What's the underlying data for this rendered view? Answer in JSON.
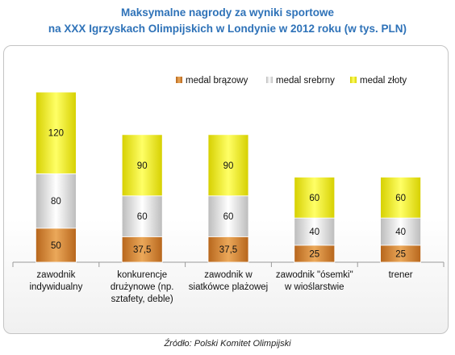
{
  "title_line1": "Maksymalne nagrody za wyniki sportowe",
  "title_line2": "na  XXX Igrzyskach Olimpijskich w Londynie w 2012 roku (w tys. PLN)",
  "source": "Źródło: Polski Komitet Olimpijski",
  "chart_data": {
    "type": "bar",
    "stacked": true,
    "title": "Maksymalne nagrody za wyniki sportowe na  XXX Igrzyskach Olimpijskich w Londynie w 2012 roku (w tys. PLN)",
    "categories": [
      [
        "zawodnik",
        "indywidualny"
      ],
      [
        "konkurencje",
        "drużynowe (np.",
        "sztafety, deble)"
      ],
      [
        "zawodnik w",
        "siatkówce plażowej"
      ],
      [
        "zawodnik \"ósemki\"",
        "w wioślarstwie"
      ],
      [
        "trener"
      ]
    ],
    "series": [
      {
        "name": "medal brązowy",
        "color": "#d9913c",
        "values": [
          50,
          37.5,
          37.5,
          25,
          25
        ],
        "labels": [
          "50",
          "37,5",
          "37,5",
          "25",
          "25"
        ]
      },
      {
        "name": "medal srebrny",
        "color": "#e2e2e2",
        "values": [
          80,
          60,
          60,
          40,
          40
        ],
        "labels": [
          "80",
          "60",
          "60",
          "40",
          "40"
        ]
      },
      {
        "name": "medal złoty",
        "color": "#f2ee10",
        "values": [
          120,
          90,
          90,
          60,
          60
        ],
        "labels": [
          "120",
          "90",
          "90",
          "60",
          "60"
        ]
      }
    ],
    "ylim": [
      0,
      260
    ],
    "grid": false,
    "legend_position": "top-right"
  }
}
